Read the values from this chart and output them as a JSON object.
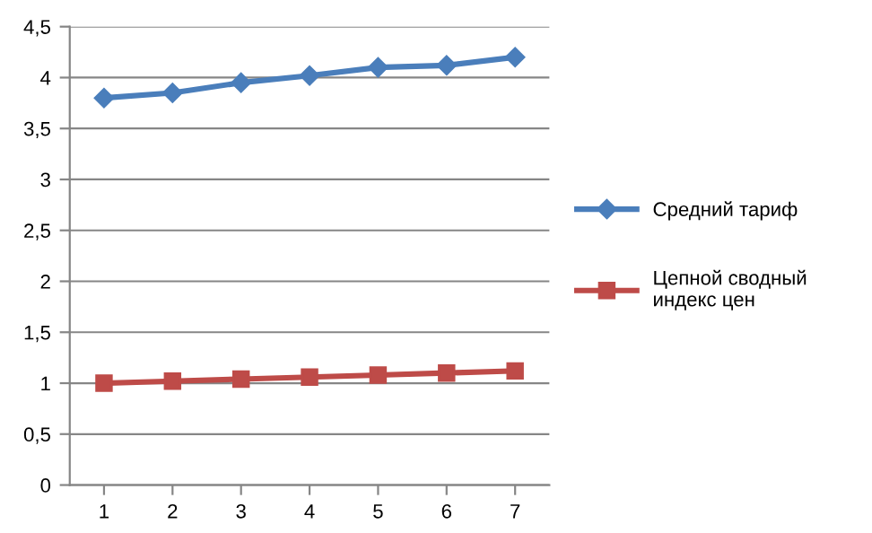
{
  "chart_data": {
    "type": "line",
    "categories": [
      "1",
      "2",
      "3",
      "4",
      "5",
      "6",
      "7"
    ],
    "series": [
      {
        "name": "Средний тариф",
        "color": "#4a7ebb",
        "marker": "diamond",
        "values": [
          3.8,
          3.85,
          3.95,
          4.02,
          4.1,
          4.12,
          4.2
        ]
      },
      {
        "name": "Цепной сводный индекс цен",
        "color": "#be4b48",
        "marker": "square",
        "values": [
          1.0,
          1.02,
          1.04,
          1.06,
          1.08,
          1.1,
          1.12
        ]
      }
    ],
    "ylim": [
      0,
      4.5
    ],
    "yticks": [
      0,
      {
        "value": 0.5,
        "label": "0,5"
      },
      1,
      {
        "value": 1.5,
        "label": "1,5"
      },
      2,
      {
        "value": 2.5,
        "label": "2,5"
      },
      3,
      {
        "value": 3.5,
        "label": "3,5"
      },
      4,
      {
        "value": 4.5,
        "label": "4,5"
      }
    ],
    "grid": "y",
    "legend": "right",
    "line_style": "solid"
  }
}
